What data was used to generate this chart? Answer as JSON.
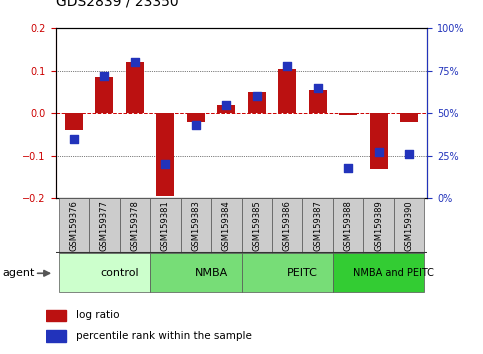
{
  "title": "GDS2839 / 23350",
  "samples": [
    "GSM159376",
    "GSM159377",
    "GSM159378",
    "GSM159381",
    "GSM159383",
    "GSM159384",
    "GSM159385",
    "GSM159386",
    "GSM159387",
    "GSM159388",
    "GSM159389",
    "GSM159390"
  ],
  "log_ratio": [
    -0.04,
    0.085,
    0.12,
    -0.195,
    -0.02,
    0.02,
    0.05,
    0.105,
    0.055,
    -0.005,
    -0.13,
    -0.02
  ],
  "percentile_rank": [
    35,
    72,
    80,
    20,
    43,
    55,
    60,
    78,
    65,
    18,
    27,
    26
  ],
  "groups": [
    {
      "label": "control",
      "start": 0,
      "end": 3,
      "color": "#ccffcc"
    },
    {
      "label": "NMBA",
      "start": 3,
      "end": 6,
      "color": "#77dd77"
    },
    {
      "label": "PEITC",
      "start": 6,
      "end": 9,
      "color": "#77dd77"
    },
    {
      "label": "NMBA and PEITC",
      "start": 9,
      "end": 12,
      "color": "#33cc33"
    }
  ],
  "ylim": [
    -0.2,
    0.2
  ],
  "yticks_left": [
    -0.2,
    -0.1,
    0,
    0.1,
    0.2
  ],
  "yticks_right": [
    0,
    25,
    50,
    75,
    100
  ],
  "bar_color": "#bb1111",
  "dot_color": "#2233bb",
  "bar_width": 0.6,
  "dot_size": 28,
  "title_fontsize": 10,
  "tick_fontsize": 7,
  "label_fontsize": 8,
  "sample_fontsize": 6,
  "legend_fontsize": 7.5,
  "sample_bg": "#cccccc",
  "agent_text": "agent"
}
